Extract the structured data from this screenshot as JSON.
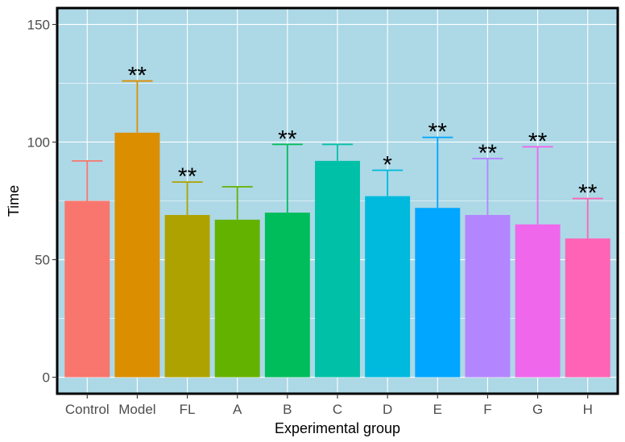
{
  "chart_data": {
    "type": "bar",
    "title": "",
    "xlabel": "Experimental group",
    "ylabel": "Time",
    "ylim": [
      -7,
      157
    ],
    "yticks": [
      0,
      50,
      100,
      150
    ],
    "grid": true,
    "legend": "none",
    "panel_background": "#add8e6",
    "grid_color": "#ffffff",
    "border_color": "#000000",
    "categories": [
      "Control",
      "Model",
      "FL",
      "A",
      "B",
      "C",
      "D",
      "E",
      "F",
      "G",
      "H"
    ],
    "values": [
      75,
      104,
      69,
      67,
      70,
      92,
      77,
      72,
      69,
      65,
      59
    ],
    "error_upper": [
      92,
      126,
      83,
      81,
      99,
      99,
      88,
      102,
      93,
      98,
      76
    ],
    "significance": [
      "",
      "**",
      "**",
      "",
      "**",
      "",
      "*",
      "**",
      "**",
      "**",
      "**"
    ],
    "colors": [
      "#f8766d",
      "#db8e00",
      "#aea200",
      "#64b200",
      "#00bd5c",
      "#00c1a7",
      "#00bade",
      "#00a6ff",
      "#b385ff",
      "#ef67eb",
      "#ff63b6"
    ]
  }
}
